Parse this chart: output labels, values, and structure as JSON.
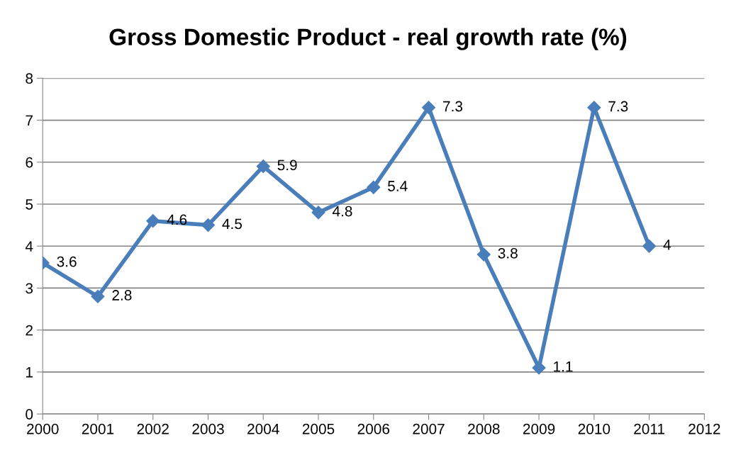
{
  "chart_data": {
    "type": "line",
    "title": "Gross Domestic Product - real growth rate (%)",
    "x": [
      2000,
      2001,
      2002,
      2003,
      2004,
      2005,
      2006,
      2007,
      2008,
      2009,
      2010,
      2011
    ],
    "series": [
      {
        "color": "#4a7ebb",
        "values": [
          3.6,
          2.8,
          4.6,
          4.5,
          5.9,
          4.8,
          5.4,
          7.3,
          3.8,
          1.1,
          7.3,
          4
        ]
      }
    ],
    "xlim": [
      2000,
      2012
    ],
    "xticks": [
      2000,
      2001,
      2002,
      2003,
      2004,
      2005,
      2006,
      2007,
      2008,
      2009,
      2010,
      2011,
      2012
    ],
    "ylim": [
      0,
      8
    ],
    "yticks": [
      0,
      1,
      2,
      3,
      4,
      5,
      6,
      7,
      8
    ],
    "grid": "y",
    "legend": false,
    "marker": "diamond",
    "line_style": "solid",
    "data_labels": true
  }
}
